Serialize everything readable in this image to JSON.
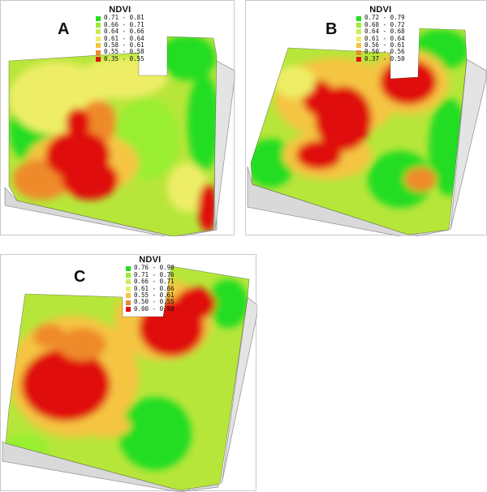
{
  "figure": {
    "panels": [
      {
        "id": "A",
        "label": "A",
        "legend_title": "NDVI",
        "classes": [
          {
            "range": "0.71 - 0.81",
            "color": "#22dd22"
          },
          {
            "range": "0.66 - 0.71",
            "color": "#99ee33"
          },
          {
            "range": "0.64 - 0.66",
            "color": "#ccee55"
          },
          {
            "range": "0.61 - 0.64",
            "color": "#eeee66"
          },
          {
            "range": "0.58 - 0.61",
            "color": "#f5c542"
          },
          {
            "range": "0.55 - 0.58",
            "color": "#ef8a2a"
          },
          {
            "range": "0.35 - 0.55",
            "color": "#e01010"
          }
        ]
      },
      {
        "id": "B",
        "label": "B",
        "legend_title": "NDVI",
        "classes": [
          {
            "range": "0.72 - 0.79",
            "color": "#22dd22"
          },
          {
            "range": "0.68 - 0.72",
            "color": "#99ee33"
          },
          {
            "range": "0.64 - 0.68",
            "color": "#ccee55"
          },
          {
            "range": "0.61 - 0.64",
            "color": "#eeee66"
          },
          {
            "range": "0.56 - 0.61",
            "color": "#f5c542"
          },
          {
            "range": "0.50 - 0.56",
            "color": "#ef8a2a"
          },
          {
            "range": "0.37 - 0.50",
            "color": "#e01010"
          }
        ]
      },
      {
        "id": "C",
        "label": "C",
        "legend_title": "NDVI",
        "classes": [
          {
            "range": "0.76 - 0.90",
            "color": "#22dd22"
          },
          {
            "range": "0.71 - 0.76",
            "color": "#99ee33"
          },
          {
            "range": "0.66 - 0.71",
            "color": "#ccee55"
          },
          {
            "range": "0.61 - 0.66",
            "color": "#eeee66"
          },
          {
            "range": "0.55 - 0.61",
            "color": "#f5c542"
          },
          {
            "range": "0.50 - 0.55",
            "color": "#ef8a2a"
          },
          {
            "range": "0.00 - 0.50",
            "color": "#e01010"
          }
        ]
      }
    ],
    "colors": {
      "base": "#b7e63a",
      "field_side": "#d9d9d9",
      "field_edge": "#9a9a9a"
    }
  }
}
